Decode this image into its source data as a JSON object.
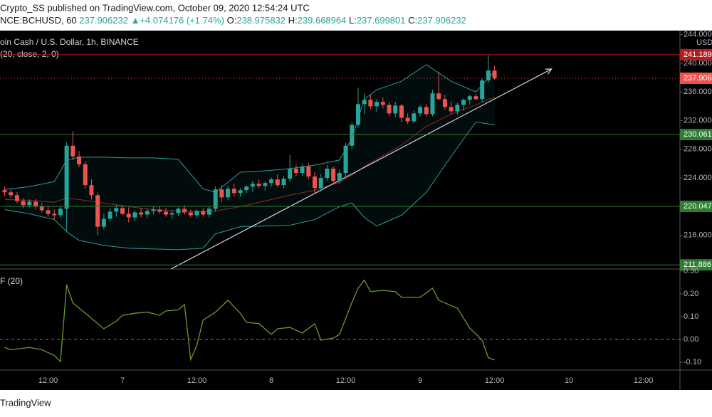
{
  "header": {
    "publisher": "Crypto_SS published on TradingView.com, October 09, 2020 12:54:24 UTC",
    "symbol": "NCE:BCHUSD, 60",
    "price": "237.906232",
    "change": "▲+4.074176 (+1.74%)",
    "ohlc": [
      {
        "label": "O:",
        "value": "238.975832"
      },
      {
        "label": "H:",
        "value": "239.668964"
      },
      {
        "label": "L:",
        "value": "237.699801"
      },
      {
        "label": "C:",
        "value": "237.906232"
      }
    ]
  },
  "footer": "TradingView",
  "chart_data": [
    {
      "type": "candlestick",
      "title": "oin Cash / U.S. Dollar, 1h, BINANCE",
      "subtitle": "(20, close, 2, 0)",
      "unit": "USD",
      "up_color": "#26a69a",
      "down_color": "#ef5350",
      "x": [
        -19,
        -18,
        -17,
        -16,
        -15,
        -14,
        -13,
        -12,
        -11,
        -10,
        -9,
        -8,
        -7,
        -6,
        -5,
        -4,
        -3,
        -2,
        -1,
        0,
        1,
        2,
        3,
        4,
        5,
        6,
        7,
        8,
        9,
        10,
        11,
        12,
        13,
        14,
        15,
        16,
        17,
        18,
        19,
        20,
        21,
        22,
        23,
        24,
        25,
        26,
        27,
        28,
        29,
        30,
        31,
        32,
        33,
        34,
        35,
        36,
        37,
        38,
        39,
        40,
        41,
        42,
        43,
        44,
        45,
        46,
        47,
        48,
        49,
        50,
        51,
        52,
        53,
        54,
        55,
        56,
        57,
        58,
        59,
        60
      ],
      "open": [
        222.3,
        222.0,
        221.6,
        220.8,
        220.2,
        220.7,
        220.0,
        219.5,
        219.0,
        218.8,
        219.7,
        228.5,
        227.0,
        225.9,
        223.0,
        221.6,
        217.2,
        218.3,
        219.3,
        219.8,
        219.0,
        218.5,
        219.2,
        218.9,
        219.4,
        219.6,
        219.3,
        218.9,
        219.1,
        219.7,
        219.2,
        218.8,
        219.4,
        218.9,
        219.7,
        222.4,
        221.3,
        222.5,
        221.9,
        222.3,
        222.8,
        223.2,
        222.9,
        223.3,
        223.8,
        223.0,
        223.9,
        225.3,
        224.7,
        225.6,
        224.2,
        222.6,
        224.0,
        225.3,
        223.6,
        224.7,
        228.5,
        231.4,
        234.3,
        234.9,
        234.0,
        234.6,
        234.2,
        233.0,
        234.1,
        232.4,
        231.9,
        233.0,
        233.9,
        232.9,
        235.8,
        235.0,
        233.9,
        233.3,
        234.2,
        234.9,
        235.4,
        235.0,
        237.6,
        238.975832
      ],
      "high": [
        222.8,
        222.4,
        222.0,
        221.2,
        221.0,
        221.1,
        220.5,
        220.1,
        219.6,
        220.0,
        229.0,
        230.5,
        227.8,
        226.3,
        223.8,
        222.0,
        219.0,
        219.8,
        220.3,
        220.2,
        219.9,
        219.5,
        219.8,
        219.7,
        220.0,
        220.1,
        219.8,
        219.5,
        219.9,
        220.2,
        219.6,
        219.6,
        219.8,
        220.0,
        222.8,
        223.0,
        222.9,
        223.2,
        222.6,
        223.0,
        223.6,
        223.8,
        223.5,
        224.1,
        224.5,
        224.3,
        227.2,
        225.9,
        226.0,
        226.1,
        224.8,
        224.6,
        225.8,
        225.6,
        225.2,
        228.9,
        231.8,
        236.6,
        235.8,
        235.6,
        235.0,
        235.2,
        234.6,
        234.6,
        234.3,
        233.0,
        233.4,
        234.2,
        234.3,
        236.3,
        238.8,
        235.6,
        234.7,
        234.5,
        235.1,
        235.6,
        235.7,
        237.9,
        241.1,
        239.668964
      ],
      "low": [
        221.5,
        221.2,
        220.5,
        219.8,
        219.9,
        219.6,
        219.2,
        218.6,
        218.2,
        218.4,
        216.6,
        226.5,
        225.5,
        222.5,
        221.0,
        216.0,
        216.8,
        217.9,
        218.6,
        218.8,
        217.8,
        218.0,
        218.5,
        218.4,
        218.9,
        219.0,
        218.6,
        218.3,
        218.7,
        218.9,
        218.5,
        218.4,
        218.6,
        218.5,
        219.3,
        220.6,
        220.9,
        221.4,
        221.4,
        221.9,
        222.0,
        222.6,
        222.2,
        222.8,
        222.7,
        222.6,
        223.5,
        224.2,
        224.3,
        223.8,
        221.8,
        222.1,
        223.6,
        223.1,
        223.2,
        224.2,
        228.0,
        231.0,
        232.9,
        233.6,
        233.2,
        233.7,
        232.6,
        232.5,
        231.8,
        231.5,
        231.6,
        232.6,
        232.5,
        232.6,
        234.8,
        233.5,
        232.9,
        232.8,
        233.4,
        234.2,
        234.8,
        234.6,
        237.2,
        237.699801
      ],
      "close": [
        222.0,
        221.6,
        220.8,
        220.2,
        220.7,
        220.0,
        219.5,
        219.0,
        218.8,
        219.7,
        228.5,
        227.0,
        225.9,
        223.0,
        221.6,
        217.2,
        218.3,
        219.3,
        219.8,
        219.0,
        218.5,
        219.2,
        218.9,
        219.4,
        219.6,
        219.3,
        218.9,
        219.1,
        219.7,
        219.2,
        218.8,
        219.4,
        218.9,
        219.7,
        222.4,
        221.3,
        222.5,
        221.9,
        222.3,
        222.8,
        223.2,
        222.9,
        223.3,
        223.8,
        223.0,
        223.9,
        225.3,
        224.7,
        225.6,
        224.2,
        222.6,
        224.0,
        225.3,
        223.6,
        224.7,
        228.5,
        231.4,
        234.3,
        234.9,
        234.0,
        234.6,
        234.2,
        233.0,
        234.1,
        232.4,
        231.9,
        233.0,
        233.9,
        232.9,
        235.8,
        235.0,
        233.9,
        233.3,
        234.2,
        234.9,
        235.4,
        235.0,
        237.6,
        238.98,
        237.906232
      ],
      "series": [
        {
          "name": "upper",
          "color": "#2a9d97",
          "x": [
            -19,
            -15,
            -11,
            -9,
            -7,
            -3,
            1,
            5,
            9,
            13,
            15,
            19,
            23,
            27,
            31,
            35,
            37,
            39,
            41,
            45,
            49,
            53,
            57,
            60
          ],
          "values": [
            222.4,
            222.8,
            223.5,
            226.5,
            226.9,
            226.9,
            226.8,
            226.8,
            226.6,
            222.5,
            222.0,
            224.8,
            225.0,
            225.3,
            225.8,
            226.5,
            229.5,
            235.0,
            236.3,
            237.5,
            239.8,
            237.5,
            236.0,
            238.9
          ]
        },
        {
          "name": "basis",
          "color": "#8e2b2b",
          "x": [
            -19,
            -15,
            -11,
            -9,
            -7,
            -3,
            1,
            5,
            9,
            13,
            15,
            19,
            23,
            27,
            31,
            35,
            37,
            39,
            41,
            45,
            49,
            53,
            57,
            60
          ],
          "values": [
            221.0,
            220.9,
            220.6,
            221.2,
            221.0,
            220.5,
            220.0,
            219.6,
            219.4,
            219.3,
            219.4,
            220.0,
            220.8,
            221.6,
            222.3,
            223.4,
            224.4,
            225.6,
            226.6,
            228.6,
            231.2,
            232.9,
            234.2,
            235.3
          ]
        },
        {
          "name": "lower",
          "color": "#2a9d97",
          "x": [
            -19,
            -15,
            -11,
            -9,
            -7,
            -3,
            1,
            5,
            9,
            13,
            15,
            19,
            23,
            27,
            31,
            35,
            37,
            39,
            41,
            45,
            49,
            53,
            57,
            60
          ],
          "values": [
            219.6,
            219.0,
            218.2,
            216.5,
            215.3,
            214.6,
            214.2,
            214.1,
            214.0,
            214.2,
            216.2,
            217.2,
            217.3,
            217.4,
            218.2,
            220.0,
            220.5,
            218.5,
            217.3,
            218.8,
            222.0,
            227.0,
            231.8,
            231.4
          ]
        }
      ],
      "levels": [
        {
          "value": 241.189,
          "color": "#b71c1c"
        },
        {
          "value": 230.061,
          "color": "#2e7d32"
        },
        {
          "value": 220.047,
          "color": "#2e7d32"
        },
        {
          "value": 211.886,
          "color": "#2e7d32"
        }
      ],
      "last_price": {
        "value": 237.906,
        "color": "#ef5350"
      },
      "trendline": {
        "x": [
          7.8,
          69.2
        ],
        "y": [
          211.3,
          239.2
        ],
        "color": "#d1d4dc"
      },
      "xlim": [
        -19.75,
        89.9
      ],
      "xticks": [
        {
          "value": -12,
          "label": "12:00"
        },
        {
          "value": 0,
          "label": "7"
        },
        {
          "value": 12,
          "label": "12:00"
        },
        {
          "value": 24,
          "label": "8"
        },
        {
          "value": 36,
          "label": "12:00"
        },
        {
          "value": 48,
          "label": "9"
        },
        {
          "value": 60,
          "label": "12:00"
        },
        {
          "value": 72,
          "label": "10"
        },
        {
          "value": 84,
          "label": "12:00"
        }
      ],
      "ylim": [
        211.31,
        244.55
      ],
      "yticks": [
        {
          "value": 216,
          "label": "216.000"
        },
        {
          "value": 220,
          "label": "220.000"
        },
        {
          "value": 224,
          "label": "224.000"
        },
        {
          "value": 228,
          "label": "228.000"
        },
        {
          "value": 232,
          "label": "232.000"
        },
        {
          "value": 236,
          "label": "236.000"
        },
        {
          "value": 240,
          "label": "240.000"
        },
        {
          "value": 244,
          "label": "244.000"
        }
      ]
    },
    {
      "type": "line",
      "title": "F (20)",
      "color": "#6a9a2b",
      "x": [
        -19,
        -18,
        -15,
        -13,
        -11,
        -10,
        -9,
        -8,
        -6,
        -4,
        -3,
        -1,
        0,
        2,
        4,
        6,
        7,
        9,
        10,
        11,
        12,
        13,
        15,
        17,
        19,
        20,
        22,
        24,
        25,
        27,
        29,
        31,
        32,
        34,
        35,
        37,
        38,
        39,
        40,
        42,
        44,
        45,
        48,
        50,
        51,
        54,
        56,
        58,
        59,
        60
      ],
      "values": [
        -0.035,
        -0.045,
        -0.035,
        -0.045,
        -0.07,
        -0.097,
        0.24,
        0.16,
        0.115,
        0.07,
        0.047,
        0.08,
        0.106,
        0.115,
        0.12,
        0.106,
        0.125,
        0.13,
        0.153,
        -0.088,
        -0.025,
        0.085,
        0.12,
        0.172,
        0.115,
        0.075,
        0.07,
        0.022,
        0.047,
        0.053,
        0.028,
        0.069,
        -0.003,
        0.006,
        0.022,
        0.162,
        0.225,
        0.26,
        0.21,
        0.215,
        0.21,
        0.185,
        0.185,
        0.225,
        0.172,
        0.137,
        0.05,
        -0.003,
        -0.08,
        -0.09
      ],
      "zero_line": true,
      "ylim": [
        -0.134,
        0.309
      ],
      "yticks": [
        {
          "value": 0.3,
          "label": "0.30"
        },
        {
          "value": 0.2,
          "label": "0.20"
        },
        {
          "value": 0.1,
          "label": "0.10"
        },
        {
          "value": 0,
          "label": "0.00"
        },
        {
          "value": -0.1,
          "label": "-0.10"
        }
      ]
    }
  ]
}
